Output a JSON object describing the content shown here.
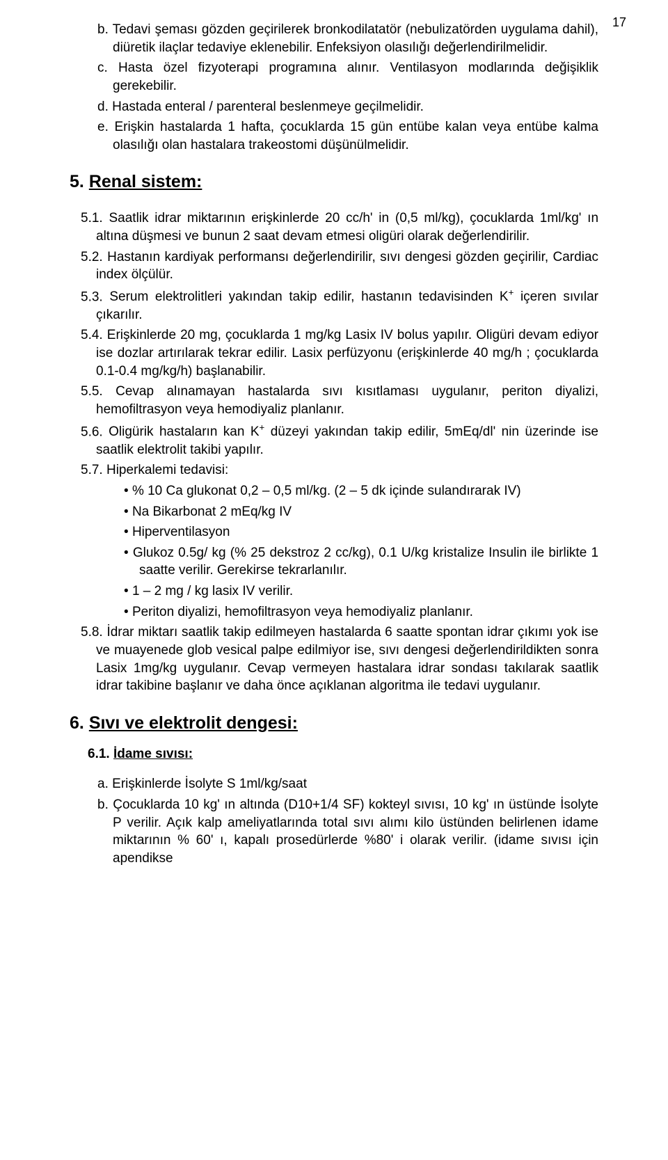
{
  "page_number": "17",
  "top": {
    "items": [
      {
        "label": "b.",
        "text": "Tedavi şeması gözden geçirilerek bronkodilatatör (nebulizatörden uygulama dahil), diüretik ilaçlar tedaviye eklenebilir. Enfeksiyon olasılığı değerlendirilmelidir."
      },
      {
        "label": "c.",
        "text": "Hasta özel fizyoterapi programına alınır. Ventilasyon modlarında değişiklik gerekebilir."
      },
      {
        "label": "d.",
        "text": "Hastada enteral / parenteral beslenmeye geçilmelidir."
      },
      {
        "label": "e.",
        "text": "Erişkin hastalarda 1 hafta, çocuklarda 15 gün entübe kalan veya entübe kalma olasılığı olan hastalara trakeostomi düşünülmelidir."
      }
    ]
  },
  "section5": {
    "num": "5.",
    "title": "Renal sistem:",
    "items": [
      {
        "label": "5.1.",
        "text": "Saatlik idrar miktarının erişkinlerde 20 cc/h' in (0,5 ml/kg), çocuklarda 1ml/kg' ın altına düşmesi ve bunun 2 saat devam etmesi oligüri olarak değerlendirilir."
      },
      {
        "label": "5.2.",
        "text": "Hastanın kardiyak performansı değerlendirilir, sıvı dengesi gözden geçirilir, Cardiac index ölçülür."
      },
      {
        "label": "5.3.",
        "text_pre": "Serum elektrolitleri yakından takip edilir, hastanın tedavisinden K",
        "sup": "+",
        "text_post": " içeren sıvılar çıkarılır."
      },
      {
        "label": "5.4.",
        "text": "Erişkinlerde 20 mg, çocuklarda 1 mg/kg Lasix IV bolus yapılır. Oligüri devam ediyor ise dozlar artırılarak tekrar edilir. Lasix perfüzyonu (erişkinlerde 40 mg/h ; çocuklarda 0.1-0.4 mg/kg/h) başlanabilir."
      },
      {
        "label": "5.5.",
        "text": "Cevap alınamayan hastalarda sıvı kısıtlaması uygulanır, periton diyalizi, hemofiltrasyon veya hemodiyaliz planlanır."
      },
      {
        "label": "5.6.",
        "text_pre": "Oligürik hastaların kan K",
        "sup": "+",
        "text_post": " düzeyi yakından takip edilir, 5mEq/dl' nin üzerinde ise saatlik elektrolit takibi yapılır."
      },
      {
        "label": "5.7.",
        "text": "Hiperkalemi tedavisi:"
      }
    ],
    "bullets": [
      "% 10 Ca glukonat 0,2 – 0,5 ml/kg. (2 – 5 dk içinde sulandırarak IV)",
      "Na Bikarbonat 2 mEq/kg IV",
      "Hiperventilasyon",
      "Glukoz  0.5g/ kg (% 25 dekstroz 2 cc/kg), 0.1 U/kg kristalize Insulin ile birlikte 1 saatte verilir. Gerekirse tekrarlanılır.",
      "1 – 2 mg / kg lasix IV verilir.",
      "Periton diyalizi, hemofiltrasyon veya hemodiyaliz planlanır."
    ],
    "item58": {
      "label": "5.8.",
      "text": "İdrar miktarı saatlik takip edilmeyen hastalarda 6 saatte spontan idrar çıkımı yok ise ve muayenede glob vesical palpe edilmiyor ise, sıvı dengesi değerlendirildikten sonra Lasix 1mg/kg uygulanır. Cevap vermeyen hastalara idrar sondası takılarak saatlik idrar takibine başlanır ve daha önce açıklanan algoritma ile tedavi uygulanır."
    }
  },
  "section6": {
    "num": "6.",
    "title": "Sıvı ve elektrolit dengesi:",
    "sub": {
      "num": "6.1.",
      "title": "İdame sıvısı:"
    },
    "items": [
      {
        "label": "a.",
        "text": "Erişkinlerde İsolyte S 1ml/kg/saat"
      },
      {
        "label": "b.",
        "text": "Çocuklarda 10 kg' ın altında (D10+1/4 SF) kokteyl sıvısı, 10 kg' ın üstünde İsolyte P verilir. Açık kalp ameliyatlarında total sıvı alımı kilo üstünden belirlenen idame miktarının % 60' ı, kapalı prosedürlerde %80' i olarak verilir. (idame sıvısı için apendikse"
      }
    ]
  }
}
